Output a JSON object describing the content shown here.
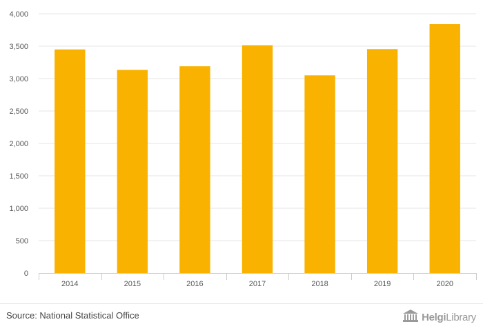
{
  "chart_data": {
    "type": "bar",
    "categories": [
      "2014",
      "2015",
      "2016",
      "2017",
      "2018",
      "2019",
      "2020"
    ],
    "values": [
      3450,
      3135,
      3190,
      3515,
      3050,
      3455,
      3840
    ],
    "ylim": [
      0,
      4000
    ],
    "yticks": [
      0,
      500,
      1000,
      1500,
      2000,
      2500,
      3000,
      3500,
      4000
    ],
    "ytick_labels": [
      "0",
      "500",
      "1,000",
      "1,500",
      "2,000",
      "2,500",
      "3,000",
      "3,500",
      "4,000"
    ],
    "grid": true,
    "legend": "none",
    "bar_color": "#f9b200"
  },
  "source_text": "Source: National Statistical Office",
  "logo": {
    "part1": "Helgi",
    "part2": "Library",
    "icon": "library-building-icon"
  }
}
